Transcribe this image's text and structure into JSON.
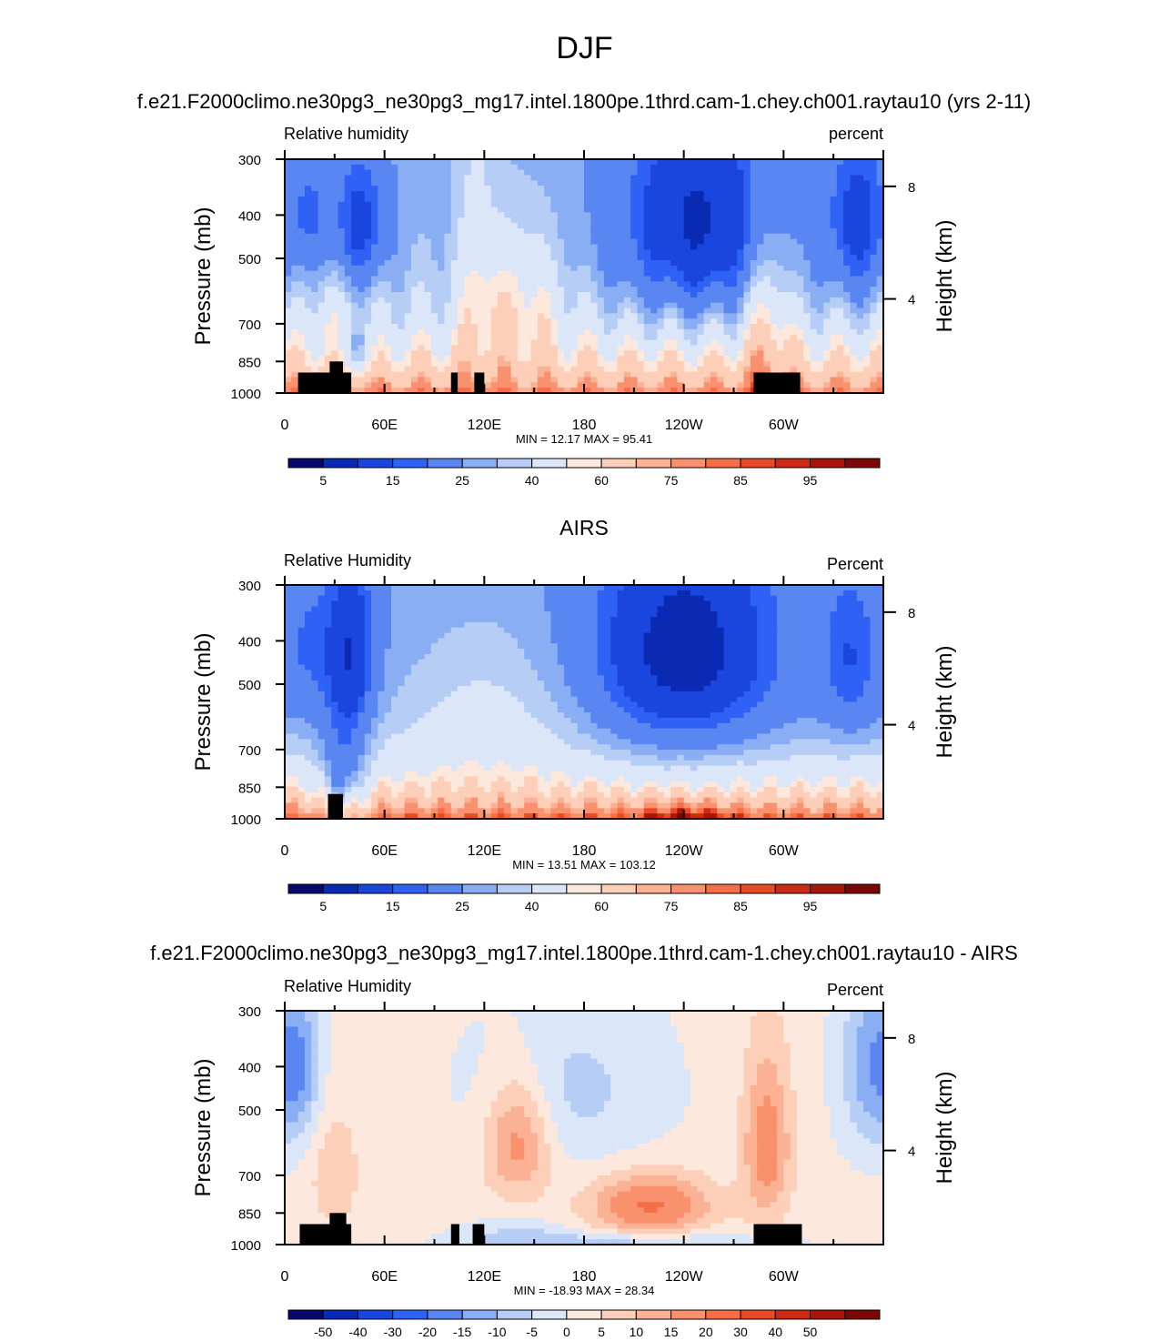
{
  "title": "DJF",
  "colors": {
    "relhum_levels": [
      "#08086e",
      "#0a2ab4",
      "#1a46de",
      "#2f62f4",
      "#5a86f2",
      "#8aaef4",
      "#b6cdf6",
      "#dbe6f9",
      "#fce8dc",
      "#fdcfb8",
      "#fbb294",
      "#f9906e",
      "#f56e48",
      "#e84a28",
      "#cc2a14",
      "#a8150a",
      "#7c0606"
    ],
    "diff_levels": [
      "#08086e",
      "#0a2ab4",
      "#1a46de",
      "#2f62f4",
      "#5a86f2",
      "#8aaef4",
      "#b6cdf6",
      "#dbe6f9",
      "#fce8dc",
      "#fdcfb8",
      "#fbb294",
      "#f9906e",
      "#f56e48",
      "#e84a28",
      "#cc2a14",
      "#a8150a",
      "#7c0606"
    ],
    "topo": "#000000"
  },
  "chart_data": [
    {
      "type": "heatmap",
      "title": "f.e21.F2000climo.ne30pg3_ne30pg3_mg17.intel.1800pe.1thrd.cam-1.chey.ch001.raytau10 (yrs 2-11)",
      "left_label": "Relative humidity",
      "right_label": "percent",
      "ylabel": "Pressure (mb)",
      "ylabel_right": "Height (km)",
      "x_ticks": [
        "0",
        "60E",
        "120E",
        "180",
        "120W",
        "60W"
      ],
      "y_ticks": [
        "300",
        "400",
        "500",
        "700",
        "850",
        "1000"
      ],
      "y_ticks_right": [
        "8",
        "4"
      ],
      "stats": "MIN =  12.17  MAX =  95.41",
      "colorbar_labels": [
        "5",
        "15",
        "25",
        "40",
        "60",
        "75",
        "85",
        "95"
      ],
      "min": 12.17,
      "max": 95.41
    },
    {
      "type": "heatmap",
      "title": "AIRS",
      "left_label": "Relative Humidity",
      "right_label": "Percent",
      "ylabel": "Pressure (mb)",
      "ylabel_right": "Height (km)",
      "x_ticks": [
        "0",
        "60E",
        "120E",
        "180",
        "120W",
        "60W"
      ],
      "y_ticks": [
        "300",
        "400",
        "500",
        "700",
        "850",
        "1000"
      ],
      "y_ticks_right": [
        "8",
        "4"
      ],
      "stats": "MIN =  13.51  MAX = 103.12",
      "colorbar_labels": [
        "5",
        "15",
        "25",
        "40",
        "60",
        "75",
        "85",
        "95"
      ],
      "min": 13.51,
      "max": 103.12
    },
    {
      "type": "heatmap",
      "title": "f.e21.F2000climo.ne30pg3_ne30pg3_mg17.intel.1800pe.1thrd.cam-1.chey.ch001.raytau10 - AIRS",
      "left_label": "Relative Humidity",
      "right_label": "Percent",
      "ylabel": "Pressure (mb)",
      "ylabel_right": "Height (km)",
      "x_ticks": [
        "0",
        "60E",
        "120E",
        "180",
        "120W",
        "60W"
      ],
      "y_ticks": [
        "300",
        "400",
        "500",
        "700",
        "850",
        "1000"
      ],
      "y_ticks_right": [
        "8",
        "4"
      ],
      "stats": "MIN = -18.93  MAX =  28.34",
      "colorbar_labels": [
        "-50",
        "-40",
        "-30",
        "-20",
        "-15",
        "-10",
        "-5",
        "0",
        "5",
        "10",
        "15",
        "20",
        "30",
        "40",
        "50"
      ],
      "min": -18.93,
      "max": 28.34
    }
  ]
}
